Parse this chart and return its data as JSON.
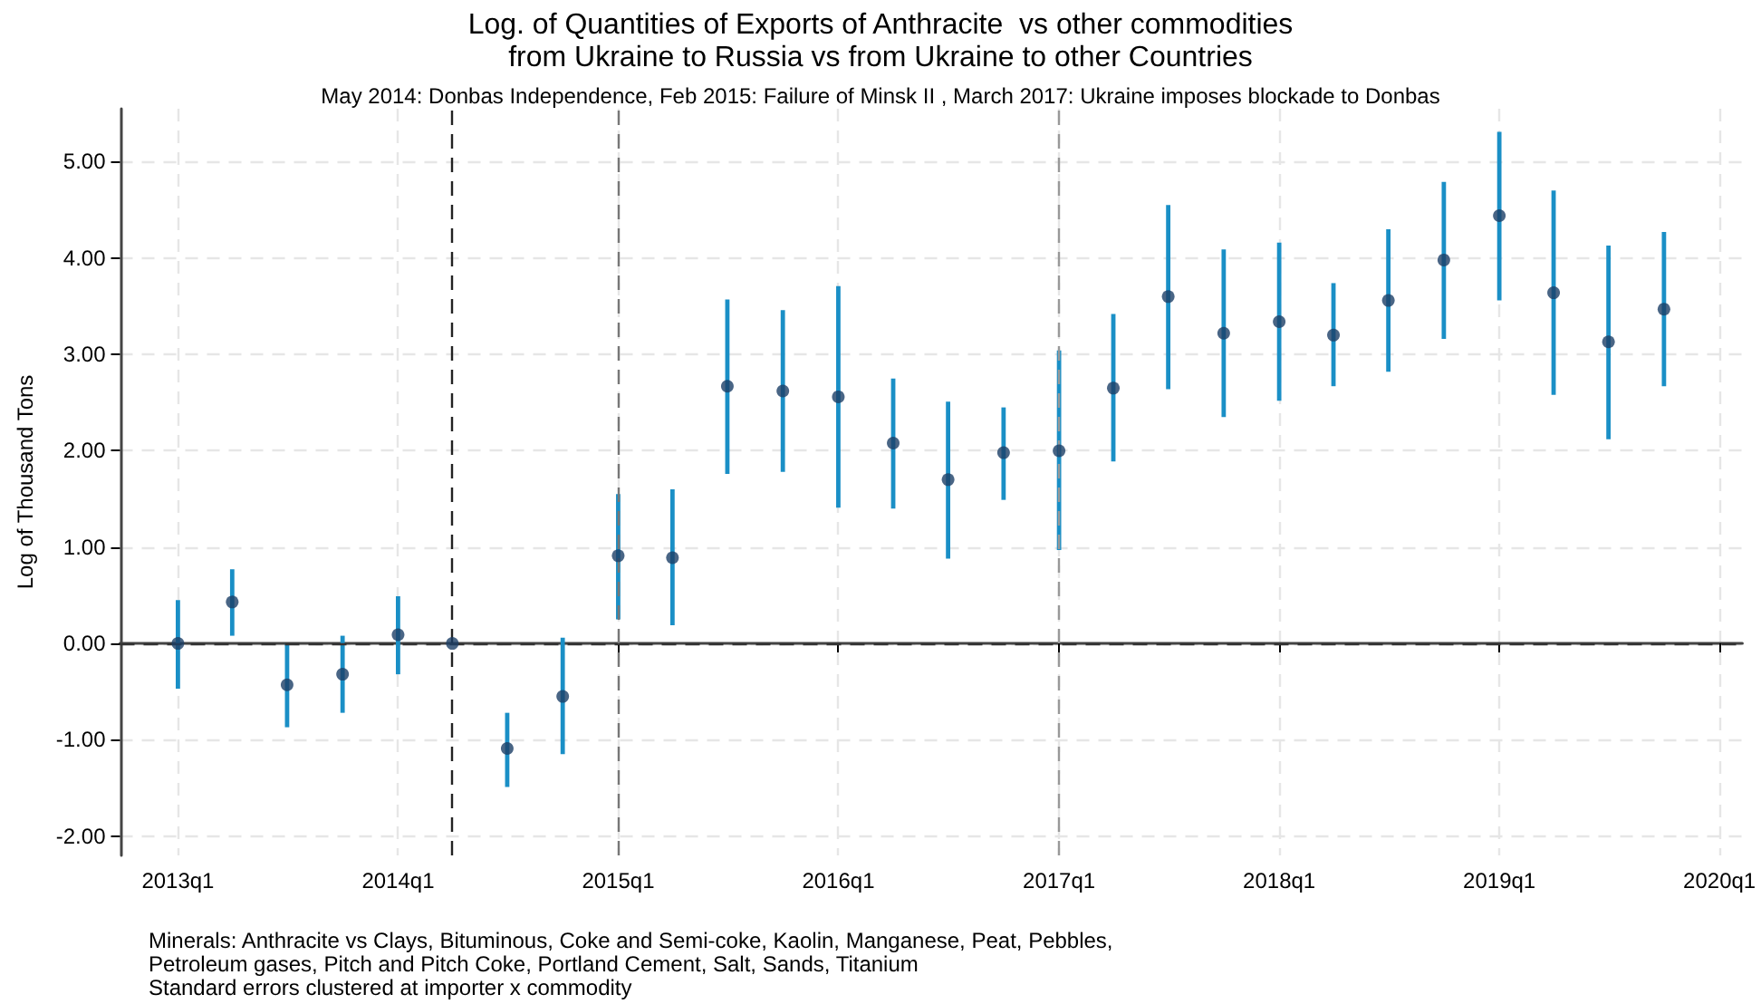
{
  "chart_data": {
    "type": "scatter",
    "title": "Log. of Quantities of Exports of Anthracite  vs other commodities\nfrom Ukraine to Russia vs from Ukraine to other Countries",
    "subtitle": "May 2014: Donbas Independence, Feb 2015: Failure of Minsk II , March 2017: Ukraine imposes blockade to Donbas",
    "ylabel": "Log of Thousand Tons",
    "x": [
      "2013-01",
      "2013-04",
      "2013-07",
      "2013-10",
      "2014-01",
      "2014-04",
      "2014-07",
      "2014-10",
      "2015-01",
      "2015-04",
      "2015-07",
      "2015-10",
      "2016-01",
      "2016-04",
      "2016-07",
      "2016-10",
      "2017-01",
      "2017-04",
      "2017-07",
      "2017-10",
      "2018-01",
      "2018-04",
      "2018-07",
      "2018-10",
      "2019-01",
      "2019-04",
      "2019-07",
      "2019-10"
    ],
    "series": [
      {
        "color": "#1b3f66",
        "values": [
          0.0,
          0.43,
          -0.43,
          -0.32,
          0.09,
          0.0,
          -1.09,
          -0.55,
          0.91,
          0.89,
          2.67,
          2.62,
          2.56,
          2.08,
          1.7,
          1.98,
          2.0,
          2.65,
          3.6,
          3.22,
          3.34,
          3.2,
          3.56,
          3.98,
          4.44,
          3.64,
          3.13,
          3.47
        ],
        "errors": [
          [
            -0.47,
            0.45
          ],
          [
            0.08,
            0.77
          ],
          [
            -0.87,
            0.0
          ],
          [
            -0.72,
            0.08
          ],
          [
            -0.32,
            0.49
          ],
          null,
          [
            -1.49,
            -0.72
          ],
          [
            -1.15,
            0.06
          ],
          [
            0.25,
            1.55
          ],
          [
            0.19,
            1.6
          ],
          [
            1.76,
            3.57
          ],
          [
            1.78,
            3.46
          ],
          [
            1.41,
            3.71
          ],
          [
            1.4,
            2.75
          ],
          [
            0.88,
            2.51
          ],
          [
            1.49,
            2.45
          ],
          [
            0.97,
            3.04
          ],
          [
            1.89,
            3.42
          ],
          [
            2.64,
            4.55
          ],
          [
            2.35,
            4.09
          ],
          [
            2.52,
            4.16
          ],
          [
            2.67,
            3.74
          ],
          [
            2.82,
            4.3
          ],
          [
            3.16,
            4.79
          ],
          [
            3.56,
            5.31
          ],
          [
            2.58,
            4.7
          ],
          [
            2.12,
            4.13
          ],
          [
            2.67,
            4.27
          ]
        ]
      }
    ],
    "xlim": [
      "2012-09-27",
      "2020-02-08"
    ],
    "xticks": [
      {
        "value": "2013-01",
        "label": "2013q1"
      },
      {
        "value": "2014-01",
        "label": "2014q1"
      },
      {
        "value": "2015-01",
        "label": "2015q1"
      },
      {
        "value": "2016-01",
        "label": "2016q1"
      },
      {
        "value": "2017-01",
        "label": "2017q1"
      },
      {
        "value": "2018-01",
        "label": "2018q1"
      },
      {
        "value": "2019-01",
        "label": "2019q1"
      },
      {
        "value": "2020-01",
        "label": "2020q1"
      }
    ],
    "ylim": [
      -2.2,
      5.55
    ],
    "yticks": [
      {
        "value": -2,
        "label": "-2.00"
      },
      {
        "value": -1,
        "label": "-1.00"
      },
      {
        "value": 0,
        "label": "0.00"
      },
      {
        "value": 1,
        "label": "1.00"
      },
      {
        "value": 2,
        "label": "2.00"
      },
      {
        "value": 3,
        "label": "3.00"
      },
      {
        "value": 4,
        "label": "4.00"
      },
      {
        "value": 5,
        "label": "5.00"
      }
    ],
    "ref_lines": [
      {
        "axis": "y",
        "value": 0,
        "color": "#333333",
        "line_style": "dashed"
      },
      {
        "axis": "x",
        "value": "2014-04",
        "color": "#222222",
        "line_style": "dashed"
      },
      {
        "axis": "x",
        "value": "2015-01",
        "color": "#777777",
        "line_style": "dashed"
      },
      {
        "axis": "x",
        "value": "2017-01",
        "color": "#999999",
        "line_style": "dashed"
      }
    ],
    "grid": true,
    "marker": "circle",
    "annotations": [
      "Minerals: Anthracite vs Clays, Bituminous, Coke and Semi-coke, Kaolin, Manganese, Peat, Pebbles,",
      "Petroleum gases, Pitch and Pitch Coke, Portland Cement, Salt, Sands, Titanium",
      "Standard errors clustered at importer x commodity"
    ]
  }
}
